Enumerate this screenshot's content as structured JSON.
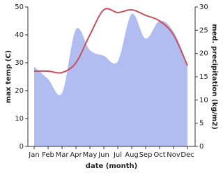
{
  "chart_data": {
    "type": "line",
    "x_label": "date (month)",
    "y_label": "max temp (C)",
    "y2_label": "med. precipitation (kg/m2)",
    "categories": [
      "Jan",
      "Feb",
      "Mar",
      "Apr",
      "May",
      "Jun",
      "Jul",
      "Aug",
      "Sep",
      "Oct",
      "Nov",
      "Dec"
    ],
    "series": [
      {
        "type": "area",
        "axis": "y2",
        "color": "#b1bdf1",
        "values": [
          17.1,
          14.5,
          11.5,
          25.2,
          20.7,
          19.5,
          18.3,
          28.5,
          23.2,
          27,
          24.7,
          17.6
        ]
      },
      {
        "type": "line",
        "color": "#c9505a",
        "values": [
          27,
          27,
          26.5,
          30,
          40,
          49,
          48,
          49,
          47,
          45,
          40,
          29
        ]
      }
    ],
    "ylim": [
      0,
      50
    ],
    "yticks": [
      0,
      10,
      20,
      30,
      40,
      50
    ],
    "y2lim": [
      0,
      30
    ],
    "y2ticks": [
      0,
      5,
      10,
      15,
      20,
      25,
      30
    ]
  }
}
